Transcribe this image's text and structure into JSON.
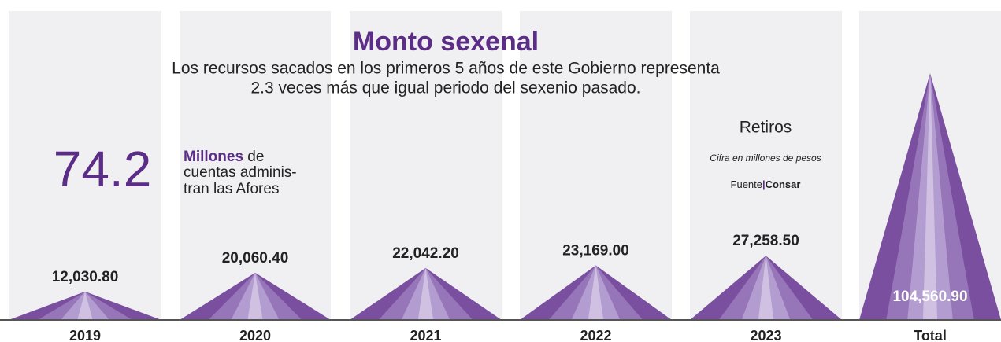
{
  "chart_data": {
    "type": "peak",
    "title": "Monto sexenal",
    "subtitle_lines": [
      "Los recursos sacados en los primeros 5 años de este Gobierno representa",
      "2.3 veces más que igual periodo del sexenio pasado."
    ],
    "highlight_number": "74.2",
    "highlight_note": {
      "bold": "Millones",
      "rest_first_line": " de",
      "lines": [
        "cuentas adminis-",
        "tran las Afores"
      ]
    },
    "legend_title": "Retiros",
    "unit_note": "Cifra en millones de pesos",
    "source": {
      "label": "Fuente",
      "separator": "|",
      "name": "Consar"
    },
    "categories": [
      "2019",
      "2020",
      "2021",
      "2022",
      "2023",
      "Total"
    ],
    "values": [
      12030.8,
      20060.4,
      22042.2,
      23169.0,
      27258.5,
      104560.9
    ],
    "value_labels": [
      "12,030.80",
      "20,060.40",
      "22,042.20",
      "23,169.00",
      "27,258.50",
      "104,560.90"
    ],
    "color": "#7a4f9f"
  }
}
